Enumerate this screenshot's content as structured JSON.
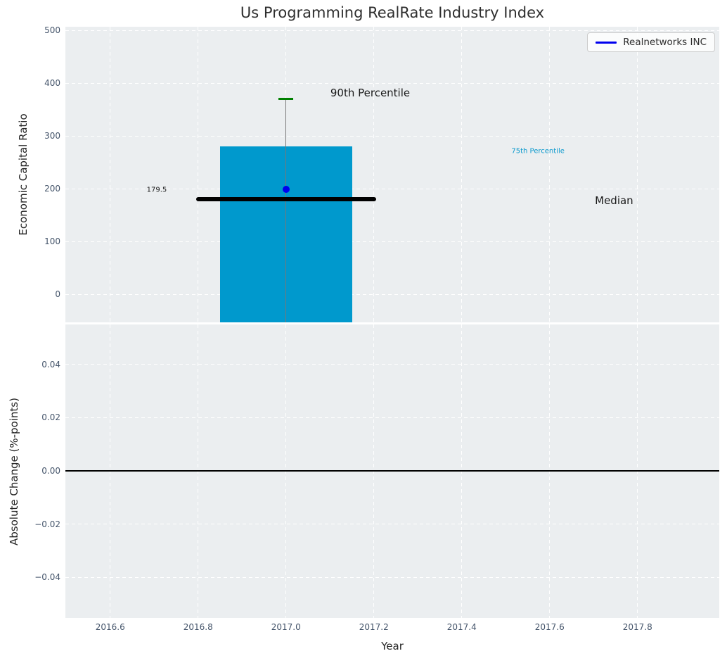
{
  "chart_data": {
    "type": "bar",
    "title": "Us Programming RealRate Industry Index",
    "xlabel": "Year",
    "xlim": [
      2016.498,
      2017.986
    ],
    "xticks": [
      2016.6,
      2016.8,
      2017.0,
      2017.2,
      2017.4,
      2017.6,
      2017.8
    ],
    "grid": true,
    "legend": {
      "position": "upper right",
      "entries": [
        {
          "label": "Realnetworks INC",
          "color": "#0000ee"
        }
      ]
    },
    "panels": [
      {
        "ylabel": "Economic Capital Ratio",
        "ylim": [
          -53.3,
          506.7
        ],
        "yticks": [
          0,
          100,
          200,
          300,
          400,
          500
        ],
        "industry": {
          "x": 2017.0,
          "p90": 370,
          "p75": 280,
          "median": 179.5,
          "bar_width_years": 0.3,
          "median_width_years": 0.41,
          "cap_width_years": 0.034
        },
        "company": {
          "name": "Realnetworks INC",
          "x": 2017.0,
          "value": 199
        },
        "annotations": [
          {
            "text": "90th Percentile",
            "x": 2017.101,
            "y": 381,
            "size": "large",
            "color": "#1a1a1a"
          },
          {
            "text": "75th Percentile",
            "x": 2017.513,
            "y": 271,
            "size": "small",
            "color": "#0b99cd"
          },
          {
            "text": "Median",
            "x": 2017.703,
            "y": 178,
            "size": "large",
            "color": "#1a1a1a"
          },
          {
            "text": "179.5",
            "x": 2016.683,
            "y": 197,
            "size": "small",
            "color": "#1a1a1a"
          }
        ]
      },
      {
        "ylabel": "Absolute Change (%-points)",
        "ylim": [
          -0.0552,
          0.055
        ],
        "yticks": [
          -0.04,
          -0.02,
          0.0,
          0.02,
          0.04
        ],
        "zero_line": 0.0
      }
    ],
    "colors": {
      "bar": "#0099cd",
      "marker": "#0000ee",
      "p90_cap": "#008000",
      "whisker": "#777777",
      "median_line": "#000000",
      "zero_line": "#000000",
      "axes_bg": "#ebeef0",
      "grid": "#ffffff",
      "tick": "#44546a",
      "text": "#262626"
    }
  }
}
